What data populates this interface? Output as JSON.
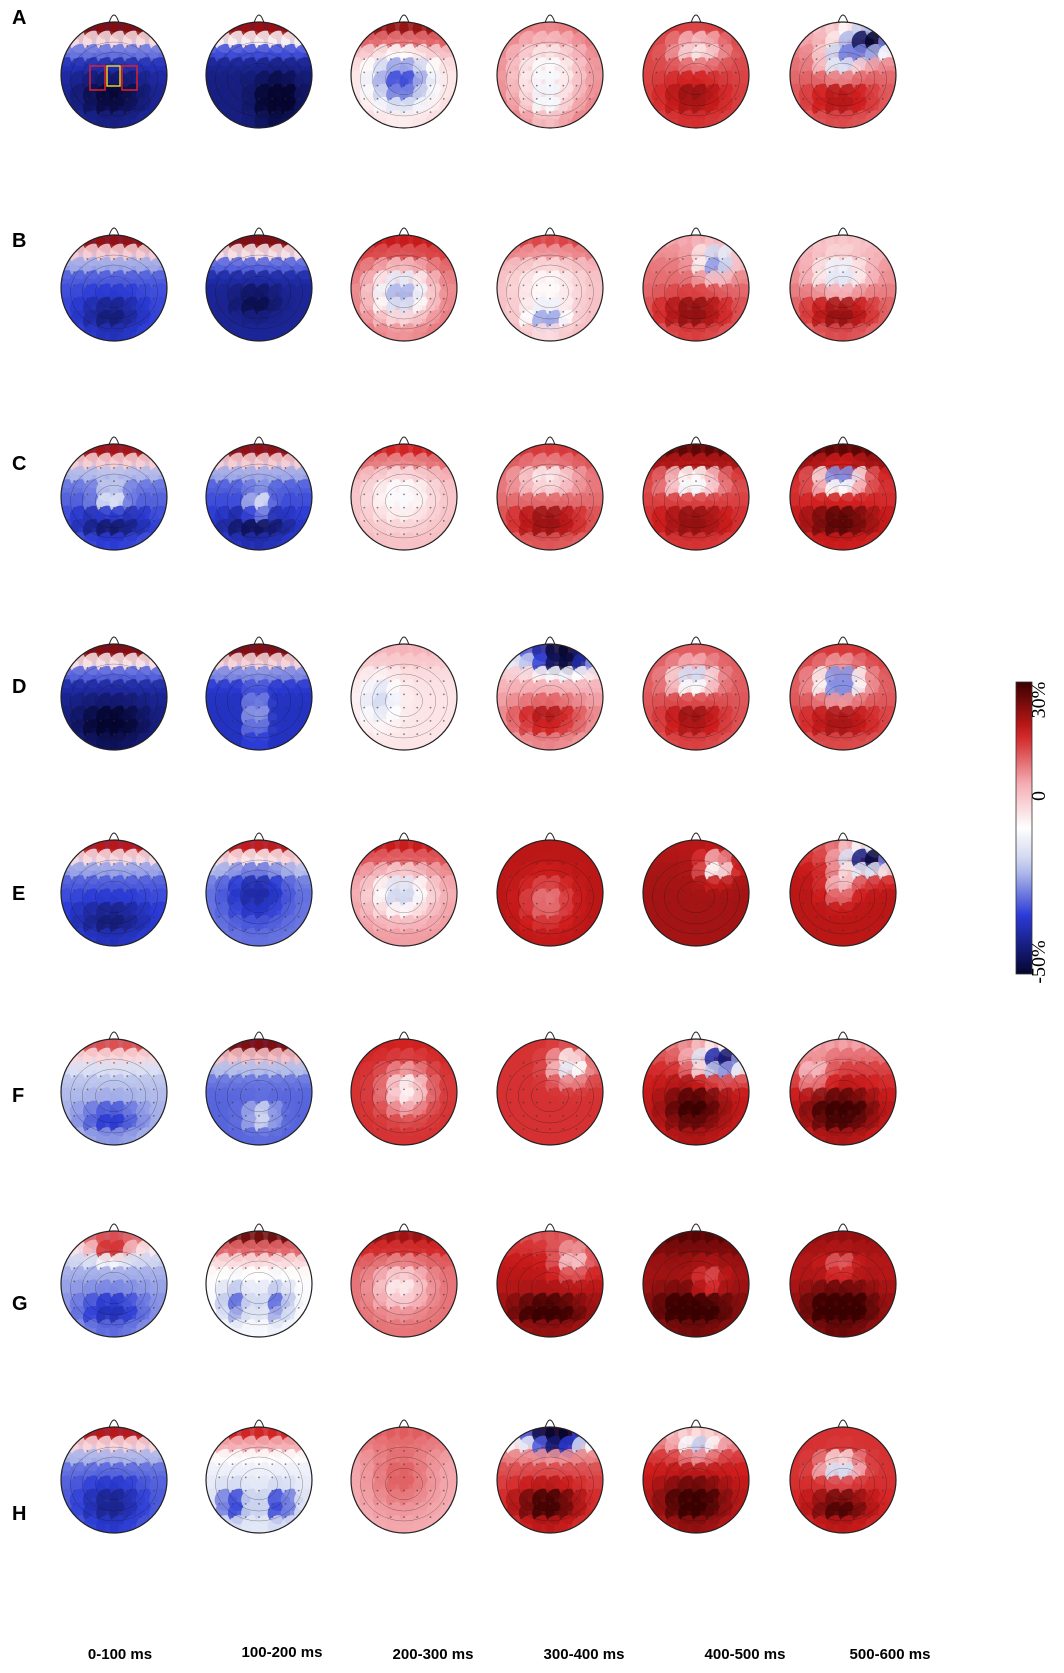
{
  "rows": [
    "A",
    "B",
    "C",
    "D",
    "E",
    "F",
    "G",
    "H"
  ],
  "time_windows": [
    "0-100 ms",
    "100-200 ms",
    "200-300 ms",
    "300-400 ms",
    "400-500 ms",
    "500-600 ms"
  ],
  "colorbar": {
    "max_label": "30%",
    "zero_label": "0",
    "min_label": "-50%"
  },
  "colors": {
    "dark_red": "#3a0000",
    "red": "#d01c1c",
    "light_red": "#f4aeb4",
    "white": "#ffffff",
    "light_blue": "#c8d0ee",
    "blue": "#2a3ad6",
    "dark_blue": "#05052e"
  }
}
